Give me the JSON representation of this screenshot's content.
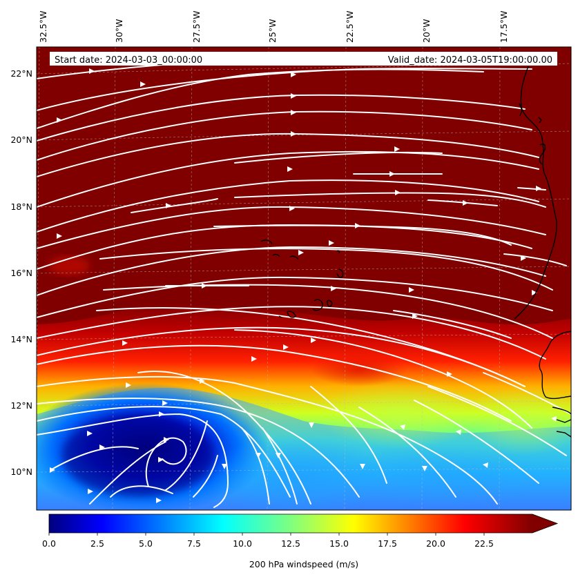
{
  "header": {
    "start_date": "Start date: 2024-03-03_00:00:00",
    "valid_date": "Valid_date: 2024-03-05T19:00:00.00"
  },
  "axes": {
    "lon_labels": [
      "32.5°W",
      "30°W",
      "27.5°W",
      "25°W",
      "22.5°W",
      "20°W",
      "17.5°W"
    ],
    "lat_labels": [
      "22°N",
      "20°N",
      "18°N",
      "16°N",
      "14°N",
      "12°N",
      "10°N"
    ]
  },
  "colorbar": {
    "label": "200 hPa windspeed (m/s)",
    "ticks": [
      "0.0",
      "2.5",
      "5.0",
      "7.5",
      "10.0",
      "12.5",
      "15.0",
      "17.5",
      "20.0",
      "22.5"
    ],
    "min": 0,
    "max": 25,
    "extend": "max",
    "colormap": "jet"
  },
  "colors": {
    "background_max": "#800000",
    "streamlines": "#ffffff",
    "coastline": "#000000",
    "low_speed_core": "#00008b"
  }
}
